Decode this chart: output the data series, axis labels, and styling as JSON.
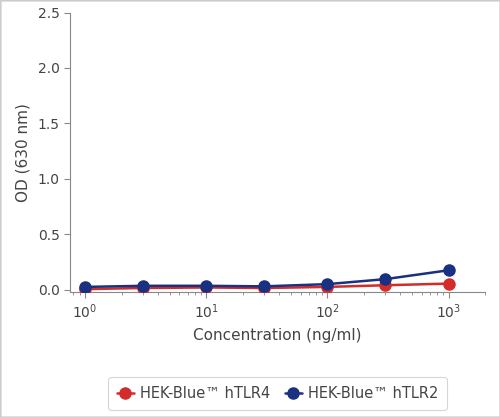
{
  "tlr4_x": [
    1,
    3,
    10,
    30,
    100,
    300,
    1000
  ],
  "tlr4_y": [
    0.005,
    0.015,
    0.02,
    0.015,
    0.025,
    0.04,
    0.055
  ],
  "tlr2_x": [
    1,
    3,
    10,
    30,
    100,
    300,
    1000
  ],
  "tlr2_y": [
    0.025,
    0.035,
    0.035,
    0.03,
    0.05,
    0.095,
    0.175
  ],
  "tlr4_color": "#d42b2b",
  "tlr2_color": "#1a3080",
  "tlr4_label": "HEK-Blue™ hTLR4",
  "tlr2_label": "HEK-Blue™ hTLR2",
  "xlabel": "Concentration (ng/ml)",
  "ylabel": "OD (630 nm)",
  "xlim": [
    0.75,
    2000
  ],
  "ylim": [
    -0.02,
    2.5
  ],
  "yticks": [
    0.0,
    0.5,
    1.0,
    1.5,
    2.0,
    2.5
  ],
  "marker_size": 8,
  "linewidth": 1.8,
  "background_color": "#ffffff",
  "border_color": "#cccccc",
  "tick_color": "#555555",
  "spine_color": "#888888",
  "font_color": "#444444",
  "axis_fontsize": 11,
  "tick_fontsize": 10,
  "legend_fontsize": 10.5
}
